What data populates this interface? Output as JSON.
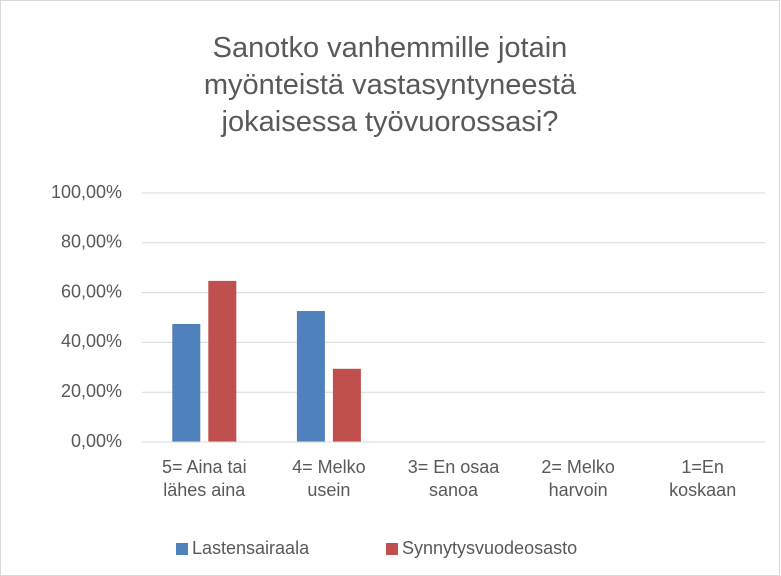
{
  "chart_data": {
    "type": "bar",
    "title": "Sanotko vanhemmille jotain myönteistä vastasyntyneestä jokaisessa työvuorossasi?",
    "categories": [
      "5= Aina tai lähes aina",
      "4= Melko usein",
      "3= En osaa sanoa",
      "2= Melko harvoin",
      "1=En koskaan"
    ],
    "series": [
      {
        "name": "Lastensairaala",
        "color": "#4f81bd",
        "values": [
          47.4,
          52.6,
          0,
          0,
          0
        ]
      },
      {
        "name": "Synnytysvuodeosasto",
        "color": "#c0504d",
        "values": [
          64.7,
          29.4,
          0,
          0,
          0
        ]
      }
    ],
    "ylim": [
      0,
      100
    ],
    "yticks": [
      {
        "value": 0,
        "label": "0,00%"
      },
      {
        "value": 20,
        "label": "20,00%"
      },
      {
        "value": 40,
        "label": "40,00%"
      },
      {
        "value": 60,
        "label": "60,00%"
      },
      {
        "value": 80,
        "label": "80,00%"
      },
      {
        "value": 100,
        "label": "100,00%"
      }
    ],
    "grid": true,
    "legend": "bottom"
  }
}
